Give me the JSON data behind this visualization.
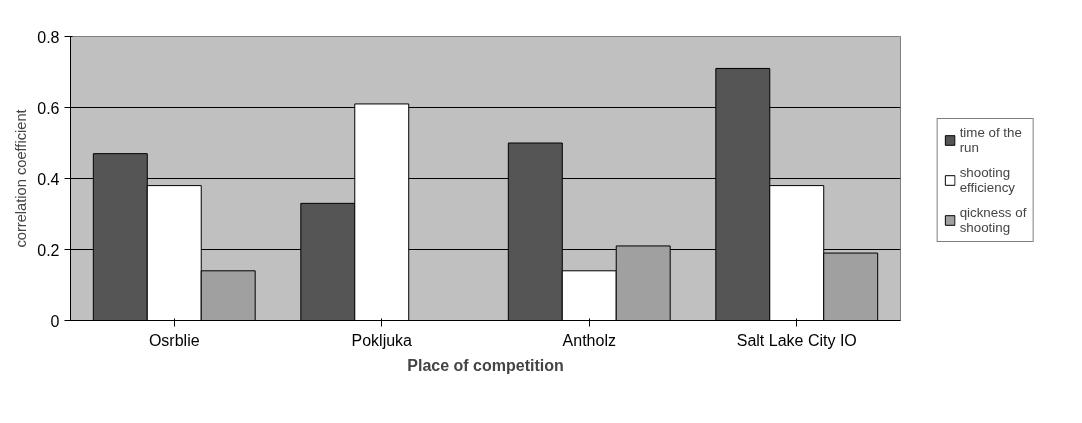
{
  "chart_data": {
    "type": "bar",
    "xlabel": "Place of competition",
    "ylabel": "correlation coefficient",
    "categories": [
      "Osrblie",
      "Pokljuka",
      "Antholz",
      "Salt Lake City IO"
    ],
    "series": [
      {
        "name": "time of the run",
        "color": "#555555",
        "values": [
          0.47,
          0.33,
          0.5,
          0.71
        ]
      },
      {
        "name": "shooting efficiency",
        "color": "#ffffff",
        "values": [
          0.38,
          0.61,
          0.14,
          0.38
        ]
      },
      {
        "name": "qickness of shooting",
        "color": "#a0a0a0",
        "values": [
          0.14,
          null,
          0.21,
          0.19
        ]
      }
    ],
    "ylim": [
      0,
      0.8
    ],
    "yticks": [
      0,
      0.2,
      0.4,
      0.6,
      0.8
    ],
    "grid": "y",
    "legend": "right"
  }
}
